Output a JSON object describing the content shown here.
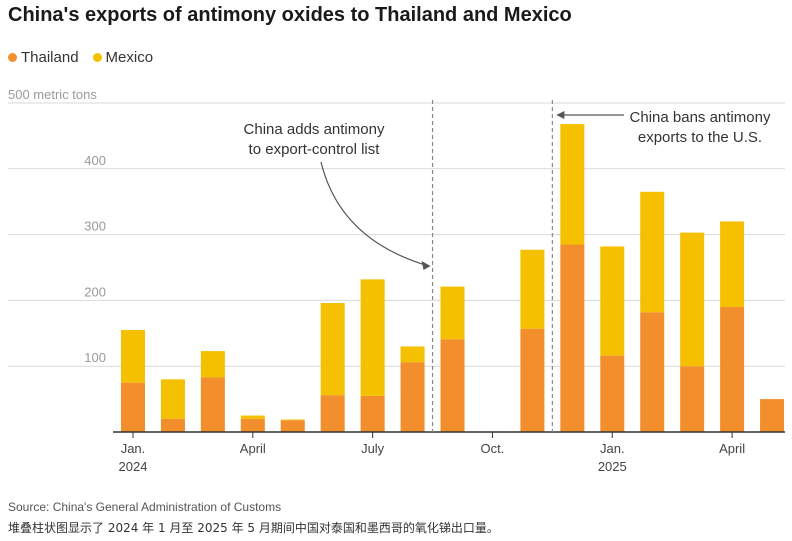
{
  "title": "China's exports of antimony oxides to Thailand and Mexico",
  "source": "Source: China's General Administration of Customs",
  "note": "堆叠柱状图显示了 2024 年 1 月至 2025 年 5 月期间中国对泰国和墨西哥的氧化锑出口量。",
  "colors": {
    "Thailand": "#f28e2b",
    "Mexico": "#f5c000",
    "grid": "#d9d9d9",
    "axis": "#333333",
    "tick_text": "#9a9a9a",
    "annotation_line": "#888888"
  },
  "chart_data": {
    "type": "bar",
    "stacked": true,
    "categories": [
      "2024-01",
      "2024-02",
      "2024-03",
      "2024-04",
      "2024-05",
      "2024-06",
      "2024-07",
      "2024-08",
      "2024-09",
      "2024-10",
      "2024-11",
      "2024-12",
      "2025-01",
      "2025-02",
      "2025-03",
      "2025-04",
      "2025-05"
    ],
    "series": [
      {
        "name": "Thailand",
        "values": [
          75,
          20,
          83,
          20,
          18,
          56,
          55,
          106,
          141,
          0,
          157,
          285,
          116,
          182,
          100,
          190,
          50
        ]
      },
      {
        "name": "Mexico",
        "values": [
          80,
          60,
          40,
          5,
          1,
          140,
          177,
          24,
          80,
          0,
          120,
          183,
          166,
          183,
          203,
          130,
          0
        ]
      }
    ],
    "ylim": [
      0,
      500
    ],
    "yticks": [
      {
        "value": 100,
        "label": "100"
      },
      {
        "value": 200,
        "label": "200"
      },
      {
        "value": 300,
        "label": "300"
      },
      {
        "value": 400,
        "label": "400"
      },
      {
        "value": 500,
        "label": "500 metric tons"
      }
    ],
    "xticks": [
      {
        "index": 0,
        "label": "Jan.",
        "sub": "2024"
      },
      {
        "index": 3,
        "label": "April",
        "sub": ""
      },
      {
        "index": 6,
        "label": "July",
        "sub": ""
      },
      {
        "index": 9,
        "label": "Oct.",
        "sub": ""
      },
      {
        "index": 12,
        "label": "Jan.",
        "sub": "2025"
      },
      {
        "index": 15,
        "label": "April",
        "sub": ""
      }
    ],
    "grid": true,
    "legend_position": "top-left",
    "annotations": [
      {
        "after_index": 7,
        "text_lines": [
          "China adds antimony",
          "to export-control list"
        ]
      },
      {
        "after_index": 10,
        "text_lines": [
          "China bans antimony",
          "exports to the U.S."
        ]
      }
    ]
  }
}
